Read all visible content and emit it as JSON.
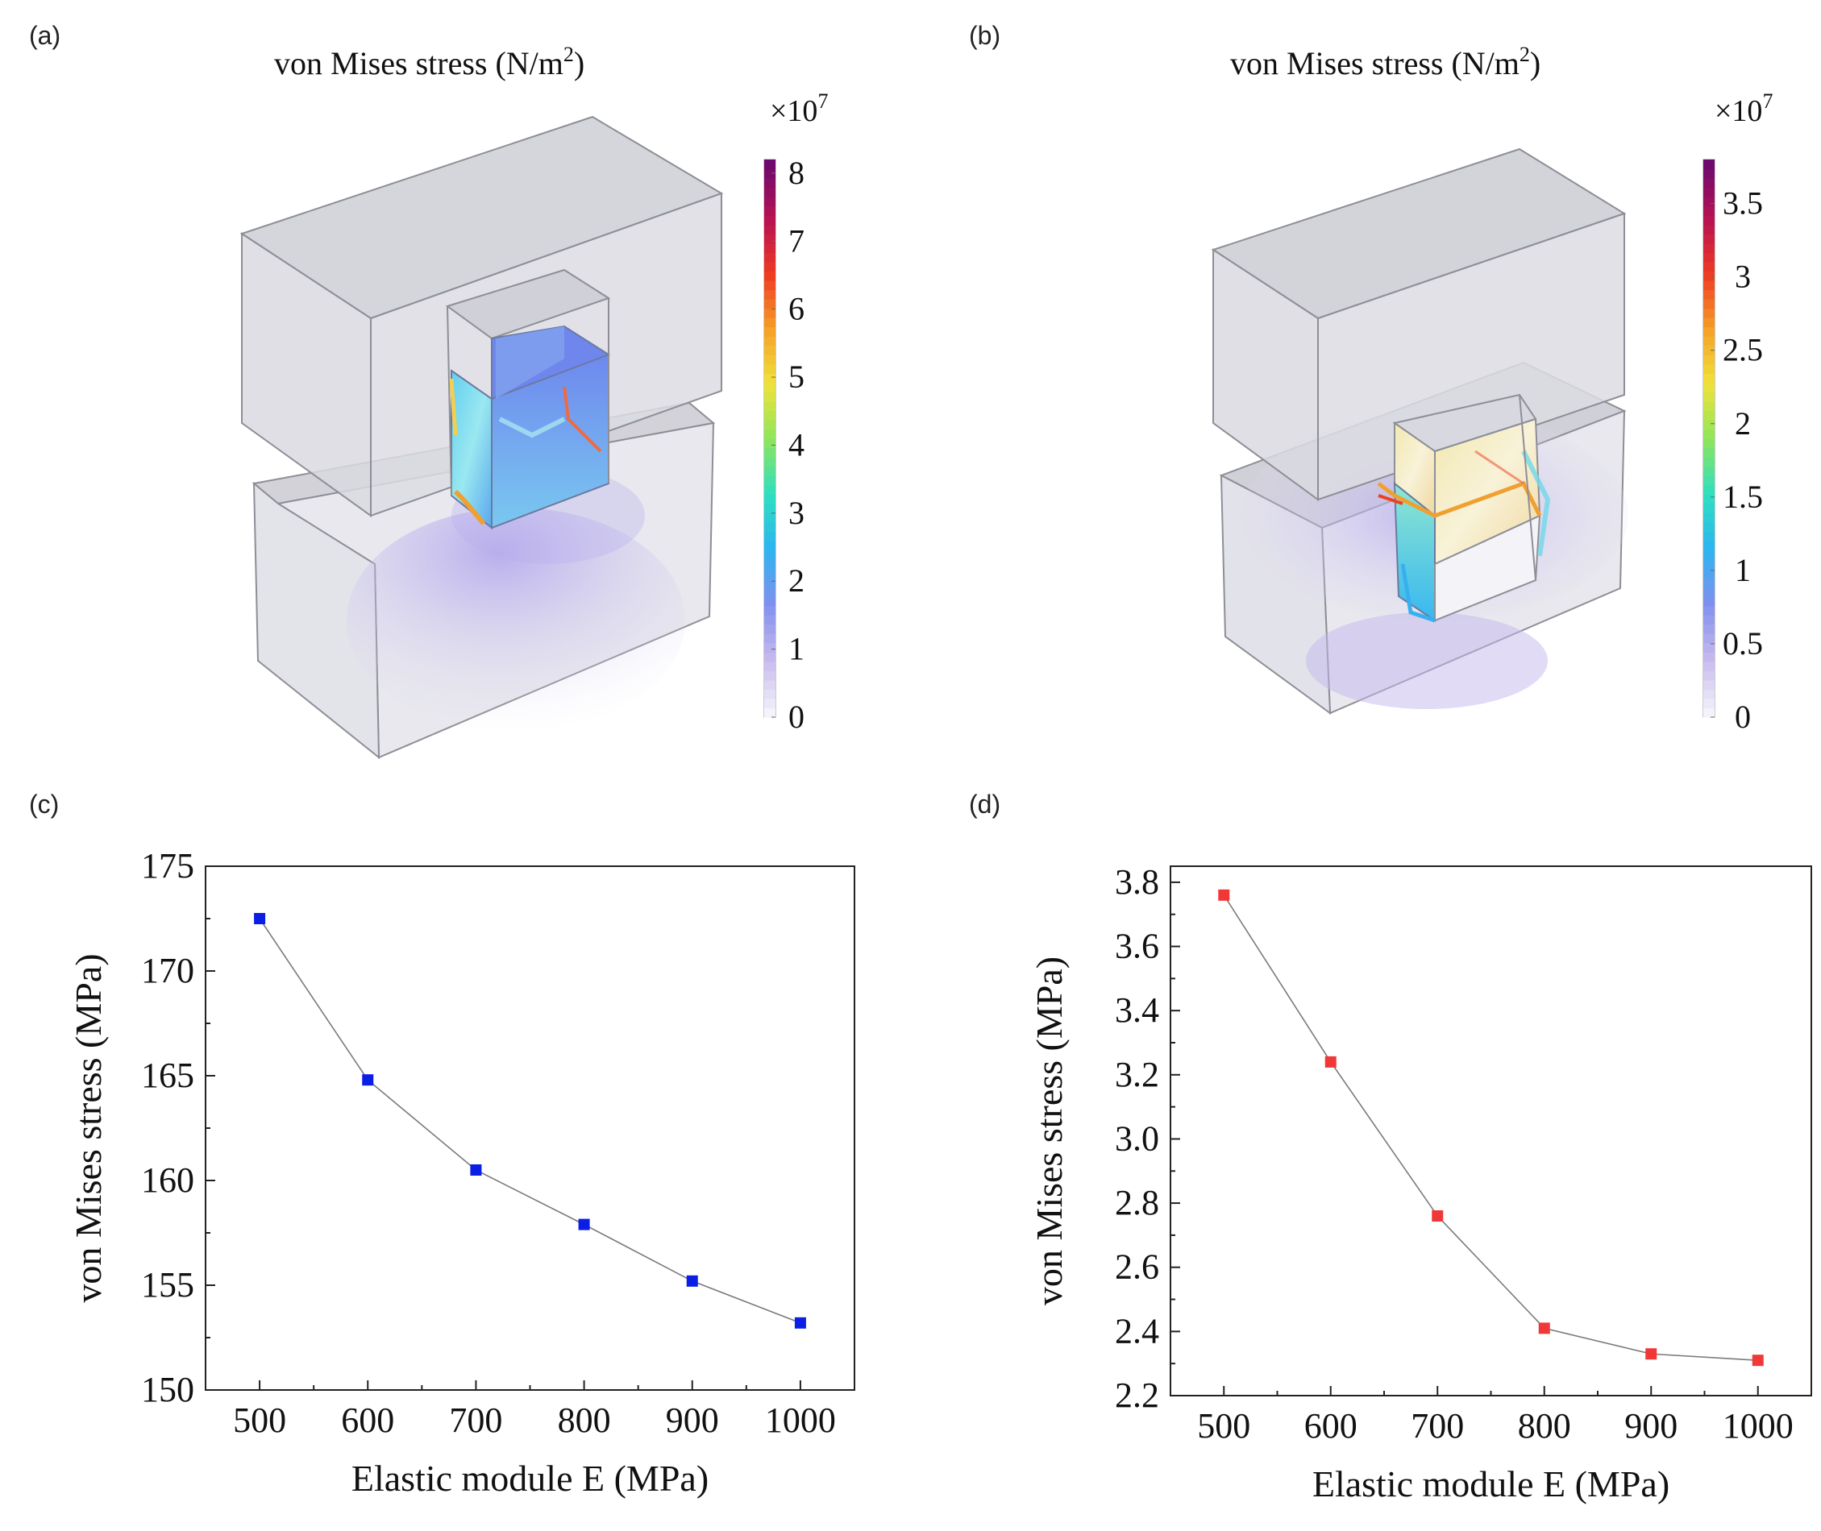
{
  "panels": {
    "a": {
      "label": "(a)",
      "title": "von Mises stress (N/m",
      "title_sup": "2",
      "title_tail": ")",
      "multiplier": "×10",
      "multiplier_exp": "7",
      "colorbar": {
        "min": 0,
        "max": 8.2,
        "ticks": [
          "0",
          "1",
          "2",
          "3",
          "4",
          "5",
          "6",
          "7",
          "8"
        ],
        "tick_values": [
          0,
          1,
          2,
          3,
          4,
          5,
          6,
          7,
          8
        ]
      }
    },
    "b": {
      "label": "(b)",
      "title": "von Mises stress (N/m",
      "title_sup": "2",
      "title_tail": ")",
      "multiplier": "×10",
      "multiplier_exp": "7",
      "colorbar": {
        "min": 0,
        "max": 3.8,
        "ticks": [
          "0",
          "0.5",
          "1",
          "1.5",
          "2",
          "2.5",
          "3",
          "3.5"
        ],
        "tick_values": [
          0,
          0.5,
          1,
          1.5,
          2,
          2.5,
          3,
          3.5
        ]
      }
    },
    "c": {
      "label": "(c)"
    },
    "d": {
      "label": "(d)"
    }
  },
  "colors": {
    "series_c": "#0a1ee6",
    "series_d": "#f03838",
    "line": "#7a7a7a",
    "box_fill": "#c9c9d1",
    "box_edge": "#8e8e96",
    "colormap": [
      "#f3f3fb",
      "#c6b8ee",
      "#7f8ff0",
      "#2bb6f0",
      "#2ee0c0",
      "#8fe65a",
      "#f0e23a",
      "#f5a028",
      "#ee3a22",
      "#b81252",
      "#6e0a6e"
    ]
  },
  "chart_data": [
    {
      "panel": "c",
      "type": "line",
      "xlabel": "Elastic module E (MPa)",
      "ylabel": "von Mises stress (MPa)",
      "xlim": [
        450,
        1050
      ],
      "ylim": [
        150,
        175
      ],
      "xticks": [
        500,
        600,
        700,
        800,
        900,
        1000
      ],
      "yticks": [
        150,
        155,
        160,
        165,
        170,
        175
      ],
      "x": [
        500,
        600,
        700,
        800,
        900,
        1000
      ],
      "y": [
        172.5,
        164.8,
        160.5,
        157.9,
        155.2,
        153.2
      ]
    },
    {
      "panel": "d",
      "type": "line",
      "xlabel": "Elastic module  E (MPa)",
      "ylabel": "von Mises stress (MPa)",
      "xlim": [
        450,
        1050
      ],
      "ylim": [
        2.2,
        3.85
      ],
      "xticks": [
        500,
        600,
        700,
        800,
        900,
        1000
      ],
      "yticks": [
        "2.2",
        "2.4",
        "2.6",
        "2.8",
        "3.0",
        "3.2",
        "3.4",
        "3.6",
        "3.8"
      ],
      "x": [
        500,
        600,
        700,
        800,
        900,
        1000
      ],
      "y": [
        3.76,
        3.24,
        2.76,
        2.41,
        2.33,
        2.31
      ]
    }
  ]
}
